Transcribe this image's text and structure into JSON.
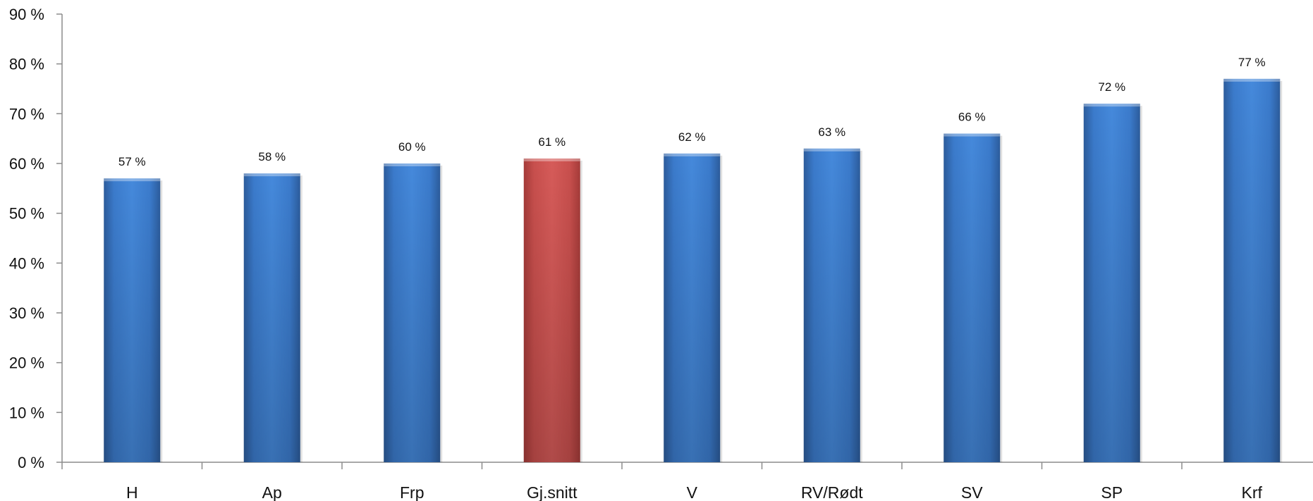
{
  "chart_data": {
    "type": "bar",
    "title": "",
    "xlabel": "",
    "ylabel": "",
    "categories": [
      "H",
      "Ap",
      "Frp",
      "Gj.snitt",
      "V",
      "RV/Rødt",
      "SV",
      "SP",
      "Krf"
    ],
    "values": [
      57,
      58,
      60,
      61,
      62,
      63,
      66,
      72,
      77
    ],
    "value_labels": [
      "57 %",
      "58 %",
      "60 %",
      "61 %",
      "62 %",
      "63 %",
      "66 %",
      "72 %",
      "77 %"
    ],
    "highlight_category": "Gj.snitt",
    "ylim": [
      0,
      90
    ],
    "yticks": [
      0,
      10,
      20,
      30,
      40,
      50,
      60,
      70,
      80,
      90
    ],
    "ytick_labels": [
      "0 %",
      "10 %",
      "20 %",
      "30 %",
      "40 %",
      "50 %",
      "60 %",
      "70 %",
      "80 %",
      "90 %"
    ],
    "grid": false,
    "legend": "none"
  },
  "colors": {
    "bar": "#3d7fd1",
    "bar_dark": "#2a5a99",
    "highlight": "#cf5654",
    "highlight_dark": "#a63c3a",
    "axis": "#8c8c8c"
  }
}
